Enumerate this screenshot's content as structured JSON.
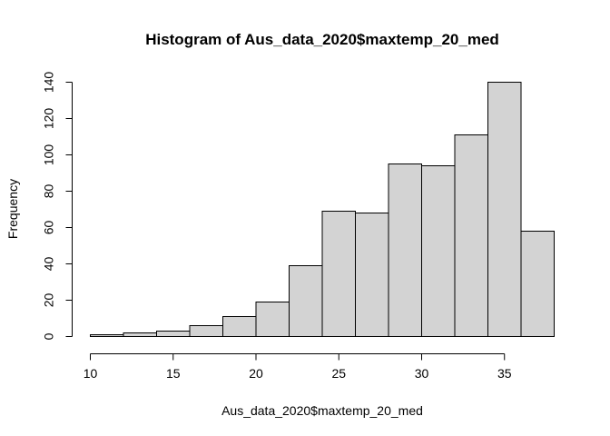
{
  "chart_data": {
    "type": "bar",
    "subtype": "histogram",
    "title": "Histogram of Aus_data_2020$maxtemp_20_med",
    "xlabel": "Aus_data_2020$maxtemp_20_med",
    "ylabel": "Frequency",
    "bins": [
      {
        "start": 10,
        "end": 12,
        "count": 1
      },
      {
        "start": 12,
        "end": 14,
        "count": 2
      },
      {
        "start": 14,
        "end": 16,
        "count": 3
      },
      {
        "start": 16,
        "end": 18,
        "count": 6
      },
      {
        "start": 18,
        "end": 20,
        "count": 11
      },
      {
        "start": 20,
        "end": 22,
        "count": 19
      },
      {
        "start": 22,
        "end": 24,
        "count": 39
      },
      {
        "start": 24,
        "end": 26,
        "count": 69
      },
      {
        "start": 26,
        "end": 28,
        "count": 68
      },
      {
        "start": 28,
        "end": 30,
        "count": 95
      },
      {
        "start": 30,
        "end": 32,
        "count": 94
      },
      {
        "start": 32,
        "end": 34,
        "count": 111
      },
      {
        "start": 34,
        "end": 36,
        "count": 140
      },
      {
        "start": 36,
        "end": 38,
        "count": 58
      }
    ],
    "x_ticks": [
      "10",
      "15",
      "20",
      "25",
      "30",
      "35"
    ],
    "y_ticks": [
      "0",
      "20",
      "40",
      "60",
      "80",
      "100",
      "120",
      "140"
    ],
    "xlim": [
      10,
      38
    ],
    "ylim": [
      0,
      140
    ],
    "grid": false,
    "bar_color": "#d3d3d3",
    "edge_color": "#000000"
  }
}
